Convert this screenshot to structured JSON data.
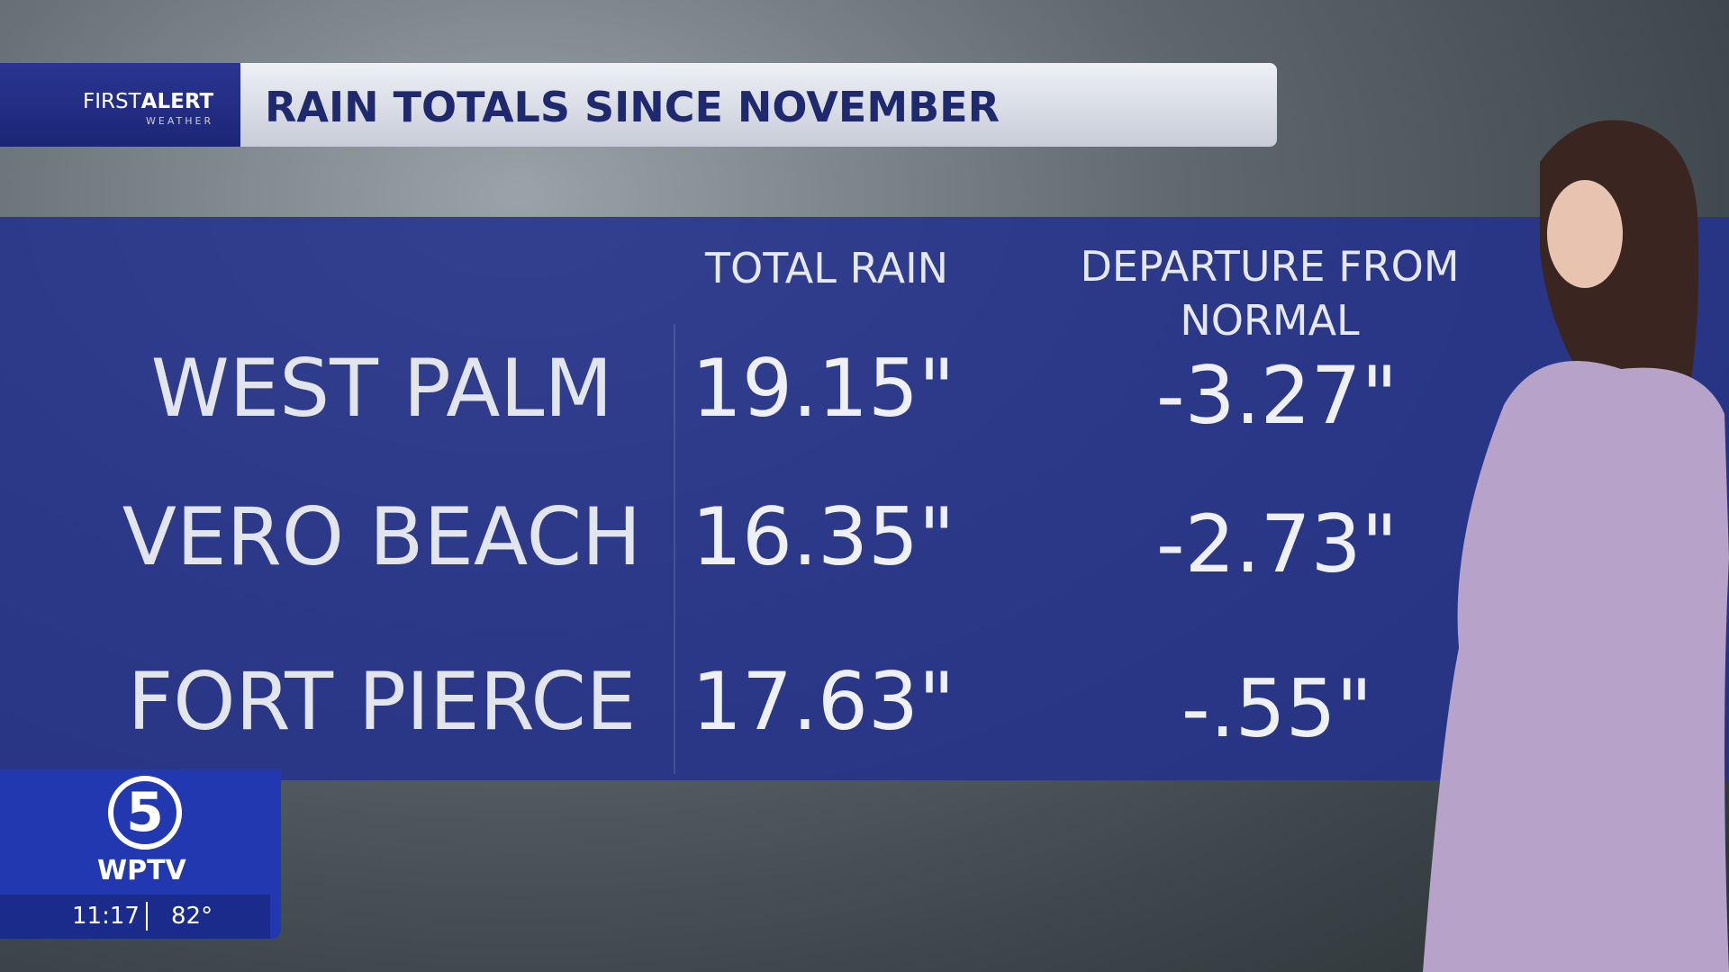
{
  "header": {
    "brand_first": "FIRST",
    "brand_alert": "ALERT",
    "brand_sub": "WEATHER",
    "title": "RAIN TOTALS SINCE NOVEMBER"
  },
  "table": {
    "columns": [
      "TOTAL RAIN",
      "DEPARTURE FROM NORMAL"
    ],
    "rows": [
      [
        "WEST PALM",
        "19.15\"",
        "-3.27\""
      ],
      [
        "VERO BEACH",
        "16.35\"",
        "-2.73\""
      ],
      [
        "FORT PIERCE",
        "17.63\"",
        "-.55\""
      ]
    ]
  },
  "logo": {
    "number": "5",
    "station": "WPTV",
    "time": "11:17",
    "temperature": "82°"
  }
}
